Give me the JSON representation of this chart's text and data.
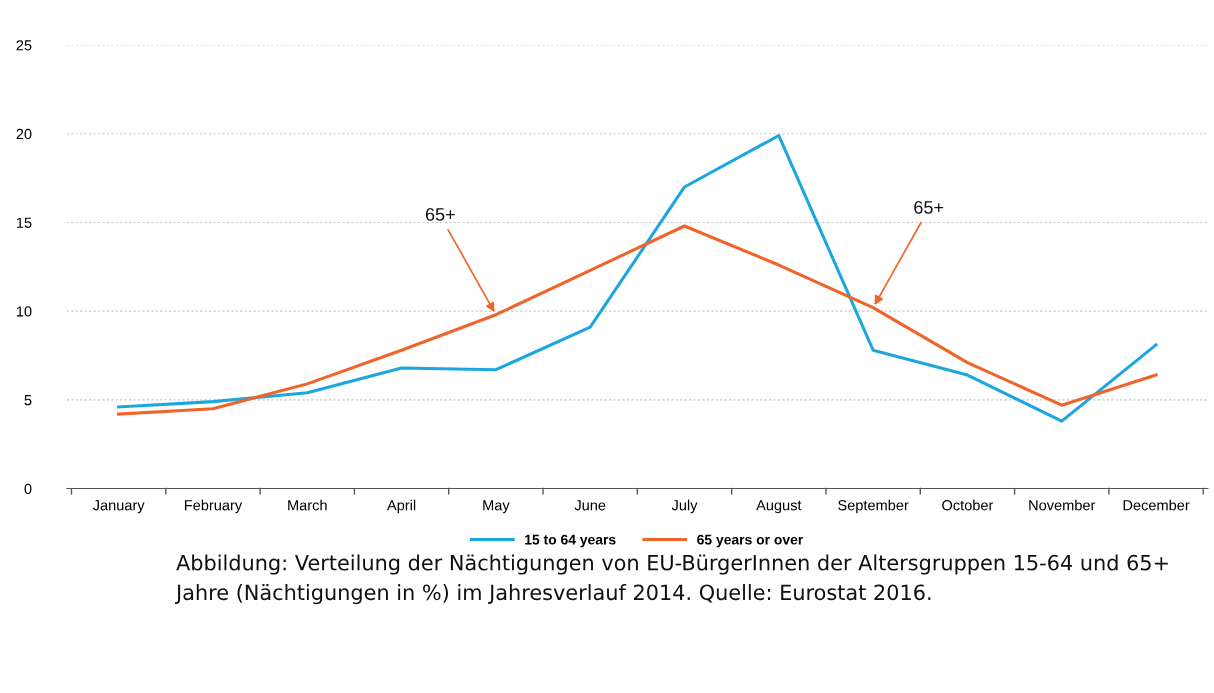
{
  "chart_data": {
    "type": "line",
    "categories": [
      "January",
      "February",
      "March",
      "April",
      "May",
      "June",
      "July",
      "August",
      "September",
      "October",
      "November",
      "December"
    ],
    "series": [
      {
        "name": "15 to 64 years",
        "color": "#1ba6e2",
        "values": [
          4.6,
          4.9,
          5.4,
          6.8,
          6.7,
          9.1,
          17.0,
          19.9,
          7.8,
          6.4,
          3.8,
          8.1
        ]
      },
      {
        "name": "65 years or over",
        "color": "#f0642a",
        "values": [
          4.2,
          4.5,
          5.9,
          7.8,
          9.8,
          12.3,
          14.8,
          12.6,
          10.2,
          7.1,
          4.7,
          6.4
        ]
      }
    ],
    "ylim": [
      0,
      25
    ],
    "yticks": [
      0,
      5,
      10,
      15,
      20,
      25
    ],
    "grid": "y",
    "legend": "bottom",
    "marker": "none",
    "line_style": "solid",
    "annotations": [
      {
        "text": "65+",
        "x": "May",
        "y": 9.8
      },
      {
        "text": "65+",
        "x": "September",
        "y": 10.2
      },
      "Abbildung: Verteilung der Nächtigungen von EU-BürgerInnen der Altersgruppen 15-64 und 65+ Jahre (Nächtigungen in %) im Jahresverlauf 2014. Quelle: Eurostat 2016."
    ]
  }
}
